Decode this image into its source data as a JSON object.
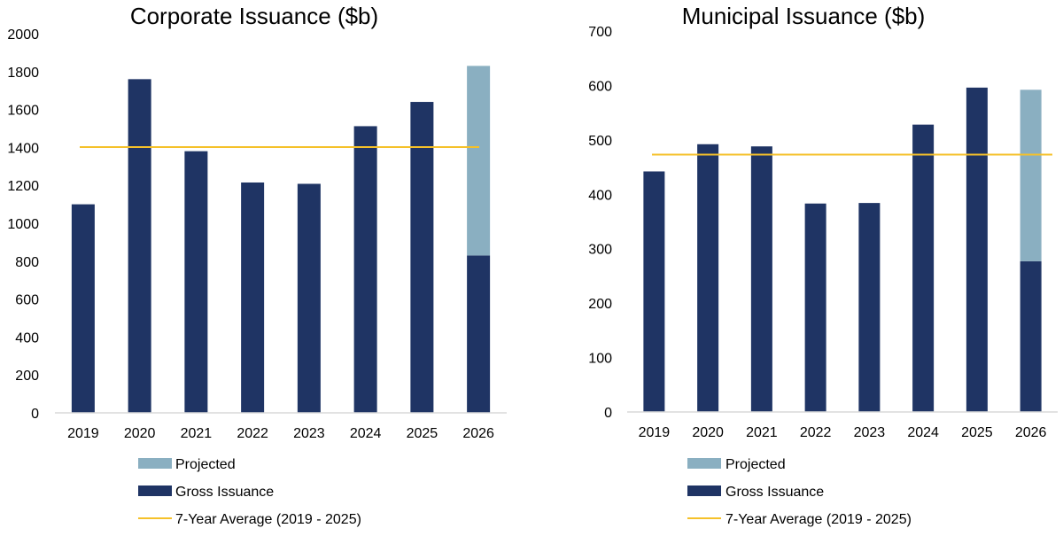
{
  "colors": {
    "gross": "#1f3464",
    "projected": "#8aafc1",
    "average": "#f5c12a",
    "axis": "#d9d9d9"
  },
  "chart_data": [
    {
      "type": "bar",
      "stacked": true,
      "title": "Corporate Issuance ($b)",
      "categories": [
        "2019",
        "2020",
        "2021",
        "2022",
        "2023",
        "2024",
        "2025",
        "2026"
      ],
      "ylim": [
        0,
        2000
      ],
      "yticks": [
        0,
        200,
        400,
        600,
        800,
        1000,
        1200,
        1400,
        1600,
        1800,
        2000
      ],
      "grid": false,
      "legend_position": "bottom",
      "series": [
        {
          "name": "Gross Issuance",
          "kind": "bar",
          "color_key": "gross",
          "values": [
            1100,
            1760,
            1380,
            1215,
            1208,
            1512,
            1640,
            830
          ]
        },
        {
          "name": "Projected",
          "kind": "bar",
          "color_key": "projected",
          "values": [
            0,
            0,
            0,
            0,
            0,
            0,
            0,
            1000
          ]
        },
        {
          "name": "7-Year Average (2019 - 2025)",
          "kind": "line",
          "color_key": "average",
          "value": 1402
        }
      ],
      "legend_order": [
        "Projected",
        "Gross Issuance",
        "7-Year Average (2019 - 2025)"
      ]
    },
    {
      "type": "bar",
      "stacked": true,
      "title": "Municipal Issuance ($b)",
      "categories": [
        "2019",
        "2020",
        "2021",
        "2022",
        "2023",
        "2024",
        "2025",
        "2026"
      ],
      "ylim": [
        0,
        700
      ],
      "yticks": [
        0,
        100,
        200,
        300,
        400,
        500,
        600,
        700
      ],
      "grid": false,
      "legend_position": "bottom",
      "series": [
        {
          "name": "Gross Issuance",
          "kind": "bar",
          "color_key": "gross",
          "values": [
            442,
            492,
            488,
            383,
            384,
            528,
            596,
            277
          ]
        },
        {
          "name": "Projected",
          "kind": "bar",
          "color_key": "projected",
          "values": [
            0,
            0,
            0,
            0,
            0,
            0,
            0,
            315
          ]
        },
        {
          "name": "7-Year Average (2019 - 2025)",
          "kind": "line",
          "color_key": "average",
          "value": 473
        }
      ],
      "legend_order": [
        "Projected",
        "Gross Issuance",
        "7-Year Average (2019 - 2025)"
      ]
    }
  ]
}
